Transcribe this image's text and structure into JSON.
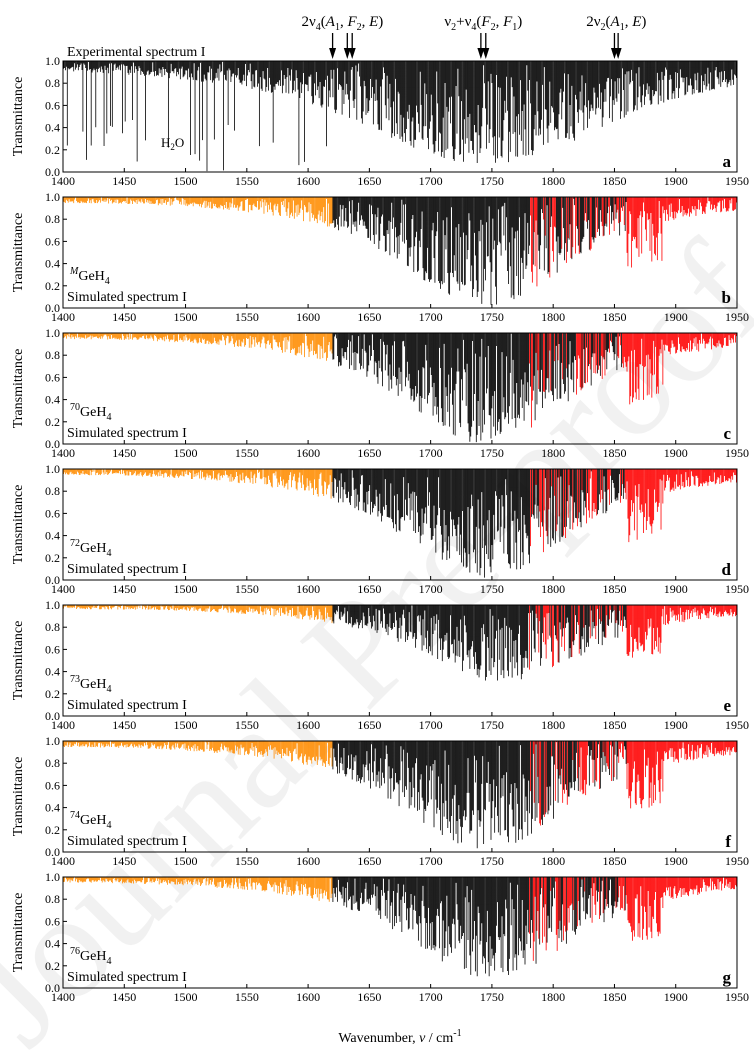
{
  "colors": {
    "axis": "#000000",
    "low_band": "#ff8c00",
    "mid_band": "#000000",
    "high_band": "#ff0000",
    "watermark": "#f0f0f0"
  },
  "watermark_text": "Journal Pre-proof",
  "top_annotations": [
    {
      "base": "2ν",
      "sub": "4",
      "mid": "(",
      "parts": [
        {
          "t": "A",
          "i": true
        },
        {
          "t": "1",
          "sub": true
        },
        {
          "t": ", "
        },
        {
          "t": "F",
          "i": true
        },
        {
          "t": "2",
          "sub": true
        },
        {
          "t": ", "
        },
        {
          "t": "E",
          "i": true
        },
        {
          "t": ")"
        }
      ],
      "arrows_x": [
        1620,
        1632,
        1636
      ]
    },
    {
      "base": "ν",
      "sub": "2",
      "mid": "+ν",
      "sub2": "4",
      "parts": [
        {
          "t": "("
        },
        {
          "t": "F",
          "i": true
        },
        {
          "t": "2",
          "sub": true
        },
        {
          "t": ", "
        },
        {
          "t": "F",
          "i": true
        },
        {
          "t": "1",
          "sub": true
        },
        {
          "t": ")"
        }
      ],
      "arrows_x": [
        1741,
        1745
      ]
    },
    {
      "base": "2ν",
      "sub": "2",
      "mid": "(",
      "parts": [
        {
          "t": "A",
          "i": true
        },
        {
          "t": "1",
          "sub": true
        },
        {
          "t": ", "
        },
        {
          "t": "E",
          "i": true
        },
        {
          "t": ")"
        }
      ],
      "arrows_x": [
        1850,
        1853
      ]
    }
  ],
  "x_axis": {
    "label_prefix": "Wavenumber,",
    "label_symbol": "ν",
    "label_unit": "/ cm",
    "label_exp": "-1"
  },
  "chart_data": [
    {
      "type": "line",
      "panel": "a",
      "letter": "a",
      "title": "Experimental spectrum I",
      "molecule_sup": "",
      "molecule": "",
      "annotation": "H2O",
      "ylabel": "Transmittance",
      "xlim": [
        1400,
        1950
      ],
      "ylim": [
        0.0,
        1.0
      ],
      "xticks": [
        1400,
        1450,
        1500,
        1550,
        1600,
        1650,
        1700,
        1750,
        1800,
        1850,
        1900,
        1950
      ],
      "yticks": [
        0.0,
        0.2,
        0.4,
        0.6,
        0.8,
        1.0
      ],
      "profile": {
        "center": 1745,
        "width": 110,
        "depth": 0.95,
        "min_transmittance": 0.0,
        "colored": false
      }
    },
    {
      "type": "line",
      "panel": "b",
      "letter": "b",
      "title": "Simulated spectrum I",
      "molecule_sup": "M",
      "molecule": "GeH",
      "molecule_sub": "4",
      "ylabel": "Transmittance",
      "xlim": [
        1400,
        1950
      ],
      "ylim": [
        0.0,
        1.0
      ],
      "xticks": [
        1400,
        1450,
        1500,
        1550,
        1600,
        1650,
        1700,
        1750,
        1800,
        1850,
        1900,
        1950
      ],
      "yticks": [
        0.0,
        0.2,
        0.4,
        0.6,
        0.8,
        1.0
      ],
      "profile": {
        "center": 1745,
        "width": 75,
        "depth": 1.0,
        "min_transmittance": 0.0,
        "colored": true
      }
    },
    {
      "type": "line",
      "panel": "c",
      "letter": "c",
      "title": "Simulated spectrum I",
      "molecule_sup": "70",
      "molecule": "GeH",
      "molecule_sub": "4",
      "ylabel": "Transmittance",
      "xlim": [
        1400,
        1950
      ],
      "ylim": [
        0.0,
        1.0
      ],
      "xticks": [
        1400,
        1450,
        1500,
        1550,
        1600,
        1650,
        1700,
        1750,
        1800,
        1850,
        1900,
        1950
      ],
      "yticks": [
        0.0,
        0.2,
        0.4,
        0.6,
        0.8,
        1.0
      ],
      "profile": {
        "center": 1745,
        "width": 75,
        "depth": 1.0,
        "min_transmittance": 0.0,
        "colored": true
      }
    },
    {
      "type": "line",
      "panel": "d",
      "letter": "d",
      "title": "Simulated spectrum I",
      "molecule_sup": "72",
      "molecule": "GeH",
      "molecule_sub": "4",
      "ylabel": "Transmittance",
      "xlim": [
        1400,
        1950
      ],
      "ylim": [
        0.0,
        1.0
      ],
      "xticks": [
        1400,
        1450,
        1500,
        1550,
        1600,
        1650,
        1700,
        1750,
        1800,
        1850,
        1900,
        1950
      ],
      "yticks": [
        0.0,
        0.2,
        0.4,
        0.6,
        0.8,
        1.0
      ],
      "profile": {
        "center": 1745,
        "width": 75,
        "depth": 1.0,
        "min_transmittance": 0.0,
        "colored": true
      }
    },
    {
      "type": "line",
      "panel": "e",
      "letter": "e",
      "title": "Simulated spectrum I",
      "molecule_sup": "73",
      "molecule": "GeH",
      "molecule_sub": "4",
      "ylabel": "Transmittance",
      "xlim": [
        1400,
        1950
      ],
      "ylim": [
        0.0,
        1.0
      ],
      "xticks": [
        1400,
        1450,
        1500,
        1550,
        1600,
        1650,
        1700,
        1750,
        1800,
        1850,
        1900,
        1950
      ],
      "yticks": [
        0.0,
        0.2,
        0.4,
        0.6,
        0.8,
        1.0
      ],
      "profile": {
        "center": 1760,
        "width": 75,
        "depth": 0.7,
        "min_transmittance": 0.2,
        "colored": true
      }
    },
    {
      "type": "line",
      "panel": "f",
      "letter": "f",
      "title": "Simulated spectrum I",
      "molecule_sup": "74",
      "molecule": "GeH",
      "molecule_sub": "4",
      "ylabel": "Transmittance",
      "xlim": [
        1400,
        1950
      ],
      "ylim": [
        0.0,
        1.0
      ],
      "xticks": [
        1400,
        1450,
        1500,
        1550,
        1600,
        1650,
        1700,
        1750,
        1800,
        1850,
        1900,
        1950
      ],
      "yticks": [
        0.0,
        0.2,
        0.4,
        0.6,
        0.8,
        1.0
      ],
      "profile": {
        "center": 1745,
        "width": 75,
        "depth": 1.0,
        "min_transmittance": 0.0,
        "colored": true
      }
    },
    {
      "type": "line",
      "panel": "g",
      "letter": "g",
      "title": "Simulated spectrum I",
      "molecule_sup": "76",
      "molecule": "GeH",
      "molecule_sub": "4",
      "ylabel": "Transmittance",
      "xlim": [
        1400,
        1950
      ],
      "ylim": [
        0.0,
        1.0
      ],
      "xticks": [
        1400,
        1450,
        1500,
        1550,
        1600,
        1650,
        1700,
        1750,
        1800,
        1850,
        1900,
        1950
      ],
      "yticks": [
        0.0,
        0.2,
        0.4,
        0.6,
        0.8,
        1.0
      ],
      "profile": {
        "center": 1750,
        "width": 75,
        "depth": 0.92,
        "min_transmittance": 0.05,
        "colored": true
      }
    }
  ]
}
